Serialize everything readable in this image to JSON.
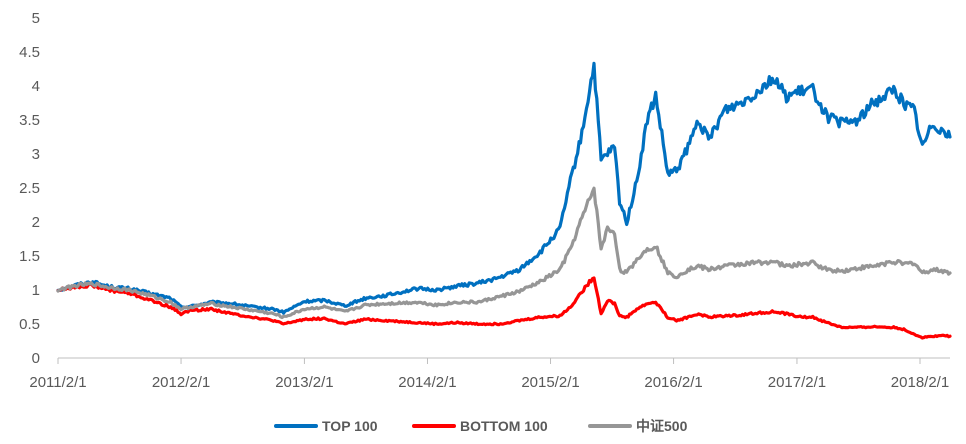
{
  "chart_data": {
    "type": "line",
    "title": "",
    "xlabel": "",
    "ylabel": "",
    "ylim": [
      0,
      5
    ],
    "yticks": [
      "0",
      "0.5",
      "1",
      "1.5",
      "2",
      "2.5",
      "3",
      "3.5",
      "4",
      "4.5",
      "5"
    ],
    "xticks": [
      "2011/2/1",
      "2012/2/1",
      "2013/2/1",
      "2014/2/1",
      "2015/2/1",
      "2016/2/1",
      "2017/2/1",
      "2018/2/1"
    ],
    "xrange": [
      "2011/2/1",
      "2018/5/1"
    ],
    "grid": false,
    "legend_position": "bottom",
    "series": [
      {
        "name": "TOP 100",
        "color": "#0070C0",
        "points": [
          [
            "2011/2/1",
            1.0
          ],
          [
            "2011/4/1",
            1.08
          ],
          [
            "2011/5/15",
            1.12
          ],
          [
            "2011/7/1",
            1.05
          ],
          [
            "2011/9/1",
            1.02
          ],
          [
            "2011/11/1",
            0.95
          ],
          [
            "2012/1/1",
            0.88
          ],
          [
            "2012/2/1",
            0.75
          ],
          [
            "2012/3/1",
            0.76
          ],
          [
            "2012/5/1",
            0.82
          ],
          [
            "2012/7/1",
            0.8
          ],
          [
            "2012/9/1",
            0.75
          ],
          [
            "2012/11/1",
            0.72
          ],
          [
            "2012/12/1",
            0.67
          ],
          [
            "2013/2/1",
            0.83
          ],
          [
            "2013/4/1",
            0.85
          ],
          [
            "2013/6/1",
            0.77
          ],
          [
            "2013/8/1",
            0.88
          ],
          [
            "2013/10/1",
            0.92
          ],
          [
            "2014/1/1",
            1.02
          ],
          [
            "2014/3/1",
            1.0
          ],
          [
            "2014/5/1",
            1.06
          ],
          [
            "2014/7/1",
            1.1
          ],
          [
            "2014/9/1",
            1.18
          ],
          [
            "2014/11/1",
            1.3
          ],
          [
            "2015/1/1",
            1.55
          ],
          [
            "2015/3/1",
            1.9
          ],
          [
            "2015/4/1",
            2.6
          ],
          [
            "2015/5/1",
            3.2
          ],
          [
            "2015/6/10",
            4.3
          ],
          [
            "2015/7/1",
            2.9
          ],
          [
            "2015/7/20",
            3.0
          ],
          [
            "2015/8/10",
            3.1
          ],
          [
            "2015/8/25",
            2.3
          ],
          [
            "2015/9/15",
            2.0
          ],
          [
            "2015/10/15",
            2.6
          ],
          [
            "2015/11/15",
            3.5
          ],
          [
            "2015/12/10",
            3.85
          ],
          [
            "2016/1/15",
            2.7
          ],
          [
            "2016/2/10",
            2.75
          ],
          [
            "2016/3/15",
            3.1
          ],
          [
            "2016/4/15",
            3.5
          ],
          [
            "2016/5/15",
            3.2
          ],
          [
            "2016/7/1",
            3.65
          ],
          [
            "2016/8/15",
            3.75
          ],
          [
            "2016/10/1",
            3.9
          ],
          [
            "2016/11/20",
            4.12
          ],
          [
            "2017/1/1",
            3.85
          ],
          [
            "2017/2/15",
            3.92
          ],
          [
            "2017/3/20",
            3.95
          ],
          [
            "2017/5/1",
            3.55
          ],
          [
            "2017/6/15",
            3.45
          ],
          [
            "2017/8/1",
            3.5
          ],
          [
            "2017/9/15",
            3.75
          ],
          [
            "2017/11/15",
            3.95
          ],
          [
            "2017/12/15",
            3.75
          ],
          [
            "2018/1/15",
            3.65
          ],
          [
            "2018/2/8",
            3.1
          ],
          [
            "2018/3/10",
            3.45
          ],
          [
            "2018/4/10",
            3.35
          ],
          [
            "2018/5/1",
            3.25
          ]
        ]
      },
      {
        "name": "BOTTOM 100",
        "color": "#FF0000",
        "points": [
          [
            "2011/2/1",
            1.0
          ],
          [
            "2011/4/1",
            1.05
          ],
          [
            "2011/5/15",
            1.07
          ],
          [
            "2011/7/1",
            1.0
          ],
          [
            "2011/9/1",
            0.95
          ],
          [
            "2011/11/1",
            0.85
          ],
          [
            "2012/1/1",
            0.75
          ],
          [
            "2012/2/1",
            0.65
          ],
          [
            "2012/3/1",
            0.7
          ],
          [
            "2012/5/1",
            0.72
          ],
          [
            "2012/7/1",
            0.65
          ],
          [
            "2012/9/1",
            0.6
          ],
          [
            "2012/11/1",
            0.55
          ],
          [
            "2012/12/1",
            0.5
          ],
          [
            "2013/2/1",
            0.57
          ],
          [
            "2013/4/1",
            0.58
          ],
          [
            "2013/6/1",
            0.5
          ],
          [
            "2013/8/1",
            0.57
          ],
          [
            "2013/10/1",
            0.55
          ],
          [
            "2014/1/1",
            0.52
          ],
          [
            "2014/3/1",
            0.5
          ],
          [
            "2014/5/1",
            0.52
          ],
          [
            "2014/7/1",
            0.5
          ],
          [
            "2014/9/1",
            0.5
          ],
          [
            "2014/11/1",
            0.55
          ],
          [
            "2015/1/1",
            0.6
          ],
          [
            "2015/3/1",
            0.62
          ],
          [
            "2015/4/1",
            0.75
          ],
          [
            "2015/5/1",
            0.95
          ],
          [
            "2015/6/10",
            1.2
          ],
          [
            "2015/7/1",
            0.65
          ],
          [
            "2015/7/20",
            0.85
          ],
          [
            "2015/8/10",
            0.8
          ],
          [
            "2015/8/25",
            0.62
          ],
          [
            "2015/9/15",
            0.6
          ],
          [
            "2015/10/15",
            0.72
          ],
          [
            "2015/11/15",
            0.8
          ],
          [
            "2015/12/10",
            0.82
          ],
          [
            "2016/1/15",
            0.6
          ],
          [
            "2016/2/10",
            0.55
          ],
          [
            "2016/3/15",
            0.6
          ],
          [
            "2016/4/15",
            0.65
          ],
          [
            "2016/5/15",
            0.6
          ],
          [
            "2016/7/1",
            0.62
          ],
          [
            "2016/8/15",
            0.63
          ],
          [
            "2016/10/1",
            0.66
          ],
          [
            "2016/11/20",
            0.68
          ],
          [
            "2017/1/1",
            0.65
          ],
          [
            "2017/2/15",
            0.6
          ],
          [
            "2017/3/20",
            0.6
          ],
          [
            "2017/5/1",
            0.52
          ],
          [
            "2017/6/15",
            0.45
          ],
          [
            "2017/8/1",
            0.45
          ],
          [
            "2017/9/15",
            0.46
          ],
          [
            "2017/11/15",
            0.45
          ],
          [
            "2017/12/15",
            0.42
          ],
          [
            "2018/1/15",
            0.35
          ],
          [
            "2018/2/8",
            0.3
          ],
          [
            "2018/3/10",
            0.32
          ],
          [
            "2018/4/10",
            0.33
          ],
          [
            "2018/5/1",
            0.32
          ]
        ]
      },
      {
        "name": "中证500",
        "color": "#969696",
        "points": [
          [
            "2011/2/1",
            1.0
          ],
          [
            "2011/4/1",
            1.07
          ],
          [
            "2011/5/15",
            1.09
          ],
          [
            "2011/7/1",
            1.04
          ],
          [
            "2011/9/1",
            1.0
          ],
          [
            "2011/11/1",
            0.92
          ],
          [
            "2012/1/1",
            0.82
          ],
          [
            "2012/2/1",
            0.72
          ],
          [
            "2012/3/1",
            0.75
          ],
          [
            "2012/5/1",
            0.8
          ],
          [
            "2012/7/1",
            0.75
          ],
          [
            "2012/9/1",
            0.7
          ],
          [
            "2012/11/1",
            0.65
          ],
          [
            "2012/12/1",
            0.6
          ],
          [
            "2013/2/1",
            0.72
          ],
          [
            "2013/4/1",
            0.75
          ],
          [
            "2013/6/1",
            0.68
          ],
          [
            "2013/8/1",
            0.78
          ],
          [
            "2013/10/1",
            0.8
          ],
          [
            "2014/1/1",
            0.82
          ],
          [
            "2014/3/1",
            0.78
          ],
          [
            "2014/5/1",
            0.82
          ],
          [
            "2014/7/1",
            0.82
          ],
          [
            "2014/9/1",
            0.9
          ],
          [
            "2014/11/1",
            0.98
          ],
          [
            "2015/1/1",
            1.12
          ],
          [
            "2015/3/1",
            1.3
          ],
          [
            "2015/4/1",
            1.6
          ],
          [
            "2015/5/1",
            2.0
          ],
          [
            "2015/6/10",
            2.5
          ],
          [
            "2015/7/1",
            1.6
          ],
          [
            "2015/7/20",
            1.9
          ],
          [
            "2015/8/10",
            1.85
          ],
          [
            "2015/8/25",
            1.3
          ],
          [
            "2015/9/15",
            1.25
          ],
          [
            "2015/10/15",
            1.45
          ],
          [
            "2015/11/15",
            1.6
          ],
          [
            "2015/12/10",
            1.65
          ],
          [
            "2016/1/15",
            1.25
          ],
          [
            "2016/2/10",
            1.2
          ],
          [
            "2016/3/15",
            1.3
          ],
          [
            "2016/4/15",
            1.35
          ],
          [
            "2016/5/15",
            1.3
          ],
          [
            "2016/7/1",
            1.35
          ],
          [
            "2016/8/15",
            1.38
          ],
          [
            "2016/10/1",
            1.4
          ],
          [
            "2016/11/20",
            1.42
          ],
          [
            "2017/1/1",
            1.35
          ],
          [
            "2017/2/15",
            1.38
          ],
          [
            "2017/3/20",
            1.4
          ],
          [
            "2017/5/1",
            1.3
          ],
          [
            "2017/6/15",
            1.28
          ],
          [
            "2017/8/1",
            1.32
          ],
          [
            "2017/9/15",
            1.35
          ],
          [
            "2017/11/15",
            1.42
          ],
          [
            "2017/12/15",
            1.38
          ],
          [
            "2018/1/15",
            1.4
          ],
          [
            "2018/2/8",
            1.25
          ],
          [
            "2018/3/10",
            1.3
          ],
          [
            "2018/4/10",
            1.28
          ],
          [
            "2018/5/1",
            1.25
          ]
        ]
      }
    ]
  }
}
